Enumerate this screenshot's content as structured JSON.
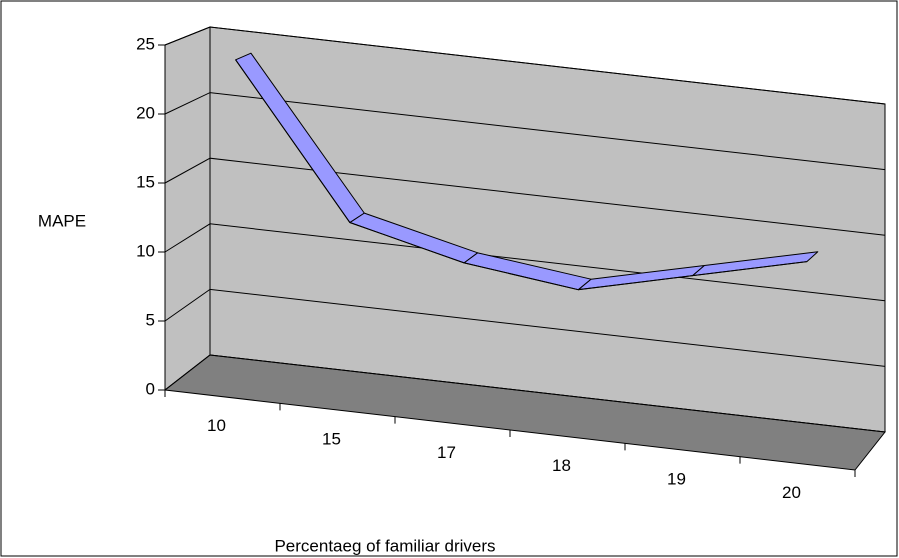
{
  "chart_data": {
    "type": "line3d",
    "categories": [
      "10",
      "15",
      "17",
      "18",
      "19",
      "20"
    ],
    "series": [
      {
        "name": "MAPE",
        "color": "#9999ff",
        "values": [
          24,
          13,
          11,
          10,
          12,
          14
        ]
      }
    ],
    "ylim": [
      0,
      25
    ],
    "yticks": [
      0,
      5,
      10,
      15,
      20,
      25
    ],
    "grid": true,
    "y_label": "MAPE",
    "x_label": "Percentaeg of familiar drivers",
    "wall_color": "#c0c0c0",
    "floor_color": "#808080"
  }
}
